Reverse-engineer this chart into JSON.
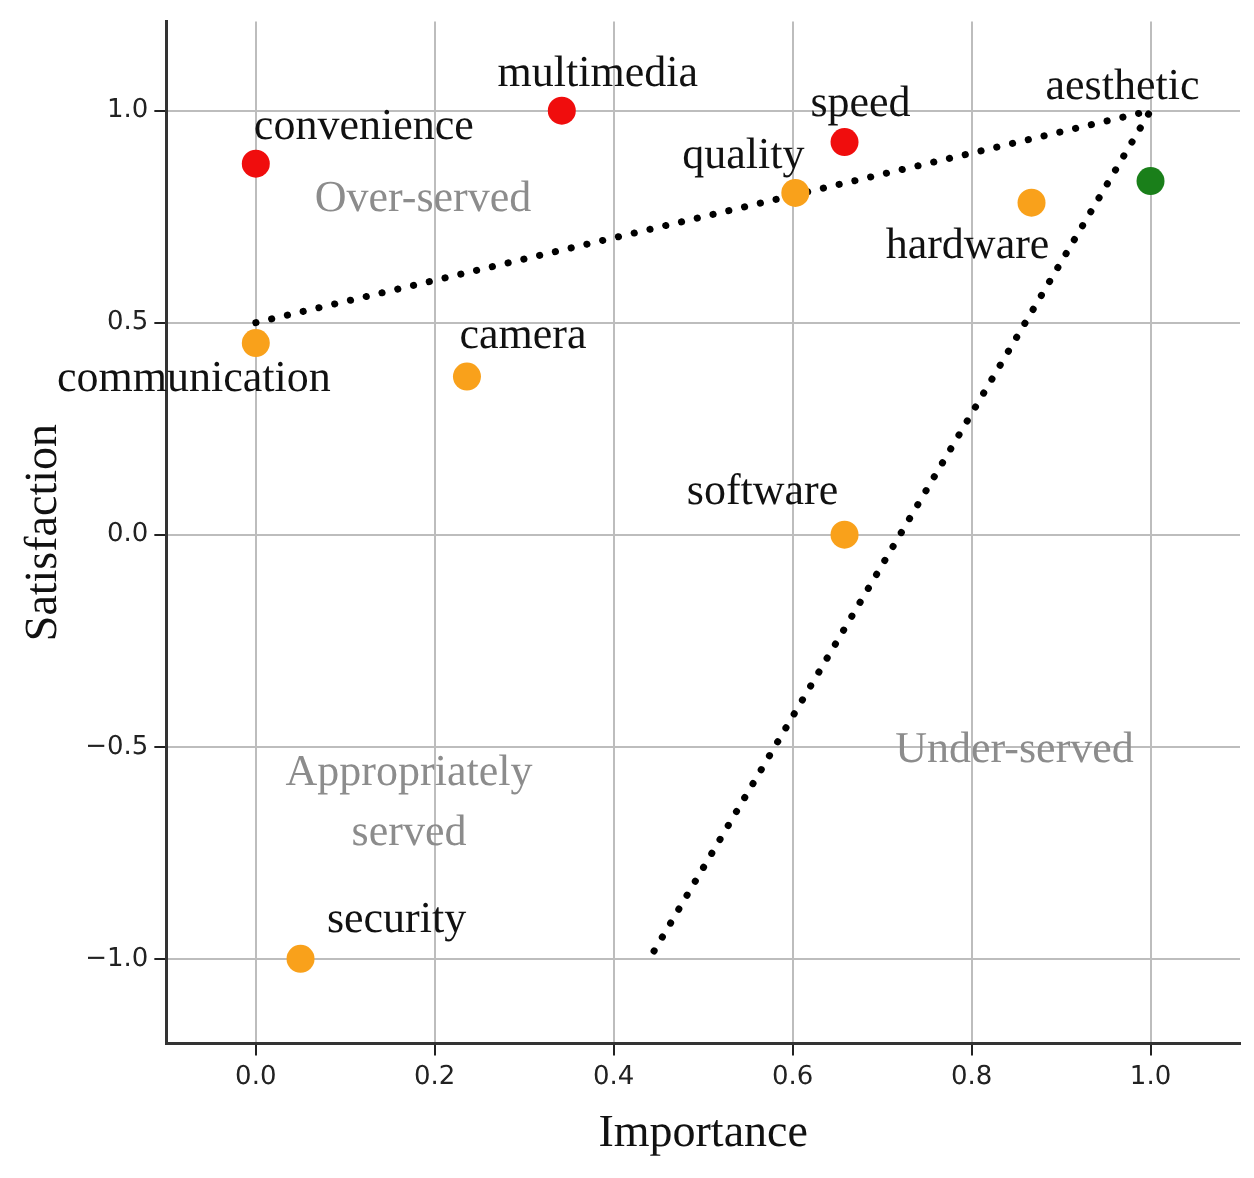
{
  "chart_data": {
    "type": "scatter",
    "xlabel": "Importance",
    "ylabel": "Satisfaction",
    "xlim": [
      -0.1,
      1.1
    ],
    "ylim": [
      -1.2,
      1.21
    ],
    "xticks": [
      {
        "value": 0,
        "label": "0.0"
      },
      {
        "value": 0.2,
        "label": "0.2"
      },
      {
        "value": 0.4,
        "label": "0.4"
      },
      {
        "value": 0.6,
        "label": "0.6"
      },
      {
        "value": 0.8,
        "label": "0.8"
      },
      {
        "value": 1,
        "label": "1.0"
      }
    ],
    "yticks": [
      {
        "value": -1,
        "label": "−1.0"
      },
      {
        "value": -0.5,
        "label": "−0.5"
      },
      {
        "value": 0,
        "label": "0.0"
      },
      {
        "value": 0.5,
        "label": "0.5"
      },
      {
        "value": 1,
        "label": "1.0"
      }
    ],
    "grid": true,
    "legend": false,
    "marker": "circle",
    "series": [
      {
        "x": [
          0,
          0.342,
          0.658,
          0.603,
          0.867,
          1.0,
          0,
          0.236,
          0.658,
          0.05
        ],
        "values": [
          0.875,
          1.0,
          0.926,
          0.806,
          0.783,
          0.834,
          0.452,
          0.373,
          0,
          -1
        ],
        "colors": [
          "#f00d0d",
          "#f00d0d",
          "#f00d0d",
          "#f9a11b",
          "#f9a11b",
          "#1a7f1a",
          "#f9a11b",
          "#f9a11b",
          "#f9a11b",
          "#f9a11b"
        ]
      },
      {
        "type": "line",
        "x": [
          0,
          1.0,
          0.44
        ],
        "values": [
          0.5,
          1.0,
          -1.0
        ],
        "color": "#000000",
        "line_style": "dotted",
        "marker": "none"
      }
    ],
    "annotations": [
      {
        "text": "convenience",
        "x": 0,
        "y": 0.875
      },
      {
        "text": "multimedia",
        "x": 0.342,
        "y": 1.0
      },
      {
        "text": "speed",
        "x": 0.658,
        "y": 0.926
      },
      {
        "text": "quality",
        "x": 0.603,
        "y": 0.806
      },
      {
        "text": "hardware",
        "x": 0.867,
        "y": 0.783
      },
      {
        "text": "aesthetic",
        "x": 1.0,
        "y": 0.834
      },
      {
        "text": "communication",
        "x": 0,
        "y": 0.452
      },
      {
        "text": "camera",
        "x": 0.236,
        "y": 0.373
      },
      {
        "text": "software",
        "x": 0.658,
        "y": 0
      },
      {
        "text": "security",
        "x": 0.05,
        "y": -1
      },
      "Over-served",
      "Appropriately\nserved",
      "Under-served"
    ]
  }
}
